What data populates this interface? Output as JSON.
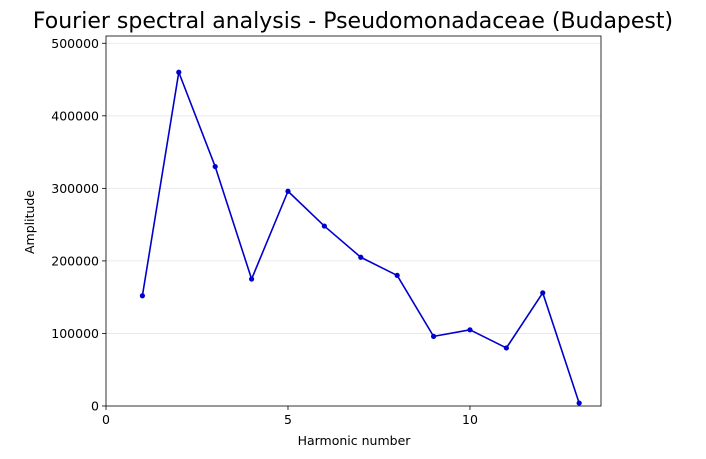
{
  "chart_data": {
    "type": "line",
    "title": "Fourier spectral analysis - Pseudomonadaceae (Budapest)",
    "xlabel": "Harmonic number",
    "ylabel": "Amplitude",
    "xlim": [
      0,
      13.6
    ],
    "ylim": [
      0,
      510000
    ],
    "xticks": [
      0,
      5,
      10
    ],
    "yticks": [
      0,
      100000,
      200000,
      300000,
      400000,
      500000
    ],
    "grid": "y-axis horizontal lines",
    "series": [
      {
        "color": "#0000cc",
        "marker": "dot",
        "x": [
          1,
          2,
          3,
          4,
          5,
          6,
          7,
          8,
          9,
          10,
          11,
          12,
          13
        ],
        "y": [
          152000,
          460000,
          330000,
          175000,
          296000,
          248000,
          205000,
          180000,
          96000,
          105000,
          80000,
          156000,
          4000
        ]
      }
    ]
  }
}
